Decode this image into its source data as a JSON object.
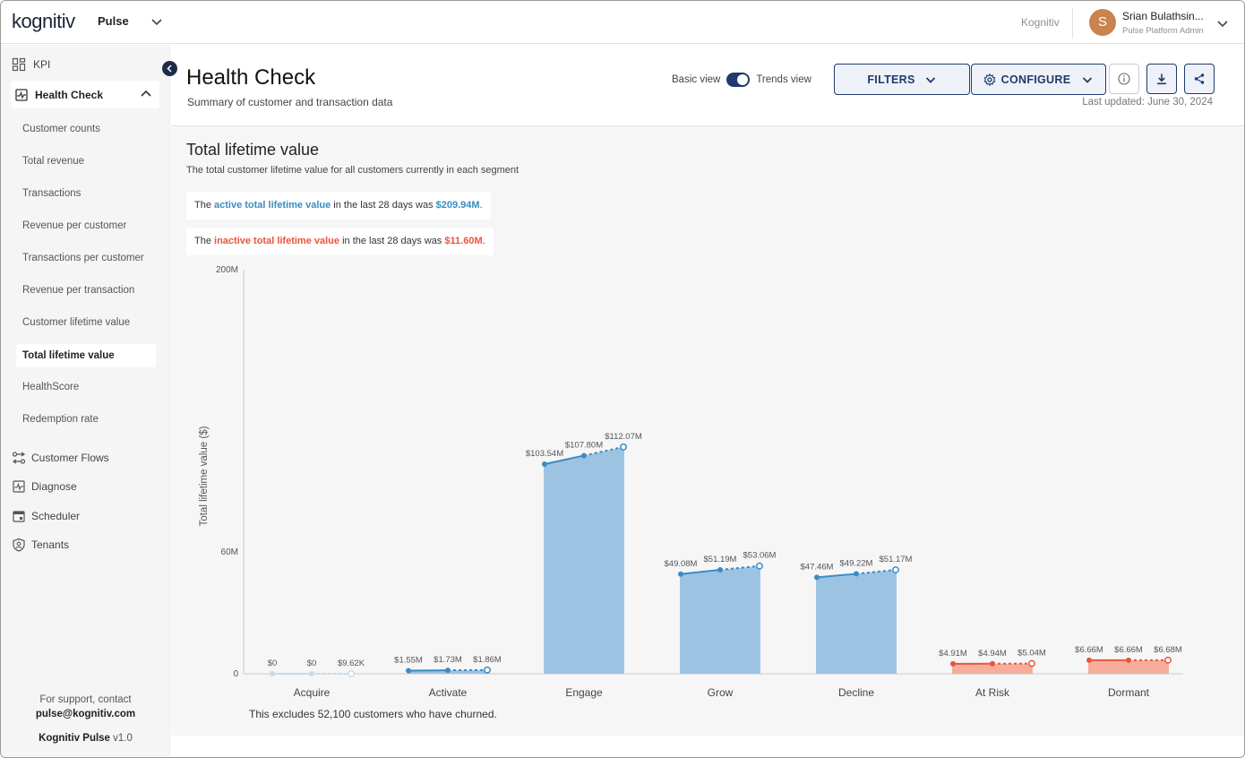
{
  "topbar": {
    "logo_text": "kognitiv",
    "app_name": "Pulse",
    "org_link": "Kognitiv",
    "user": {
      "initial": "S",
      "name": "Srian Bulathsin...",
      "role": "Pulse Platform Admin"
    }
  },
  "sidebar": {
    "kpi_label": "KPI",
    "health_check_label": "Health Check",
    "sub_items": [
      "Customer counts",
      "Total revenue",
      "Transactions",
      "Revenue per customer",
      "Transactions per customer",
      "Revenue per transaction",
      "Customer lifetime value",
      "Total lifetime value",
      "HealthScore",
      "Redemption rate"
    ],
    "sections": [
      "Customer Flows",
      "Diagnose",
      "Scheduler",
      "Tenants"
    ],
    "support_line1": "For support, contact",
    "support_email": "pulse@kognitiv.com",
    "product_name": "Kognitiv Pulse",
    "version": "v1.0"
  },
  "header": {
    "title": "Health Check",
    "subtitle": "Summary of customer and transaction data",
    "basic_view": "Basic view",
    "trends_view": "Trends view",
    "filters_label": "FILTERS",
    "configure_label": "CONFIGURE",
    "last_updated": "Last updated: June 30, 2024"
  },
  "section": {
    "title": "Total lifetime value",
    "description": "The total customer lifetime value for all customers currently in each segment",
    "active_prefix": "The ",
    "active_term": "active total lifetime value",
    "active_middle": " in the last 28 days was ",
    "active_value": "$209.94M",
    "inactive_prefix": "The ",
    "inactive_term": "inactive total lifetime value",
    "inactive_middle": " in the last 28 days was ",
    "inactive_value": "$11.60M",
    "period": ".",
    "footnote": "This excludes 52,100 customers who have churned."
  },
  "colors": {
    "active_bar": "#9dc3e2",
    "active_line": "#3a8cc4",
    "inactive_bar": "#f6ad9c",
    "inactive_line": "#e8553a",
    "acquire_line": "#c5dbee"
  },
  "chart_data": {
    "type": "bar",
    "ylabel": "Total lifetime value ($)",
    "y_ticks": [
      "0",
      "60M",
      "200M"
    ],
    "ylim": [
      0,
      200
    ],
    "y_unit": "M",
    "y_scale": "piecewise (0–60M and 60M–200M segments)",
    "categories": [
      "Acquire",
      "Activate",
      "Engage",
      "Grow",
      "Decline",
      "At Risk",
      "Dormant"
    ],
    "segment_type": [
      "active",
      "active",
      "active",
      "active",
      "active",
      "inactive",
      "inactive"
    ],
    "values": [
      0.00962,
      1.86,
      112.07,
      53.06,
      51.17,
      5.04,
      6.68
    ],
    "trend_series": [
      {
        "category": "Acquire",
        "points": [
          0,
          0,
          0.00962
        ],
        "labels": [
          "$0",
          "$0",
          "$9.62K"
        ]
      },
      {
        "category": "Activate",
        "points": [
          1.55,
          1.73,
          1.86
        ],
        "labels": [
          "$1.55M",
          "$1.73M",
          "$1.86M"
        ]
      },
      {
        "category": "Engage",
        "points": [
          103.54,
          107.8,
          112.07
        ],
        "labels": [
          "$103.54M",
          "$107.80M",
          "$112.07M"
        ]
      },
      {
        "category": "Grow",
        "points": [
          49.08,
          51.19,
          53.06
        ],
        "labels": [
          "$49.08M",
          "$51.19M",
          "$53.06M"
        ]
      },
      {
        "category": "Decline",
        "points": [
          47.46,
          49.22,
          51.17
        ],
        "labels": [
          "$47.46M",
          "$49.22M",
          "$51.17M"
        ]
      },
      {
        "category": "At Risk",
        "points": [
          4.91,
          4.94,
          5.04
        ],
        "labels": [
          "$4.91M",
          "$4.94M",
          "$5.04M"
        ]
      },
      {
        "category": "Dormant",
        "points": [
          6.66,
          6.66,
          6.68
        ],
        "labels": [
          "$6.66M",
          "$6.66M",
          "$6.68M"
        ]
      }
    ],
    "grid": false,
    "legend": "none"
  }
}
